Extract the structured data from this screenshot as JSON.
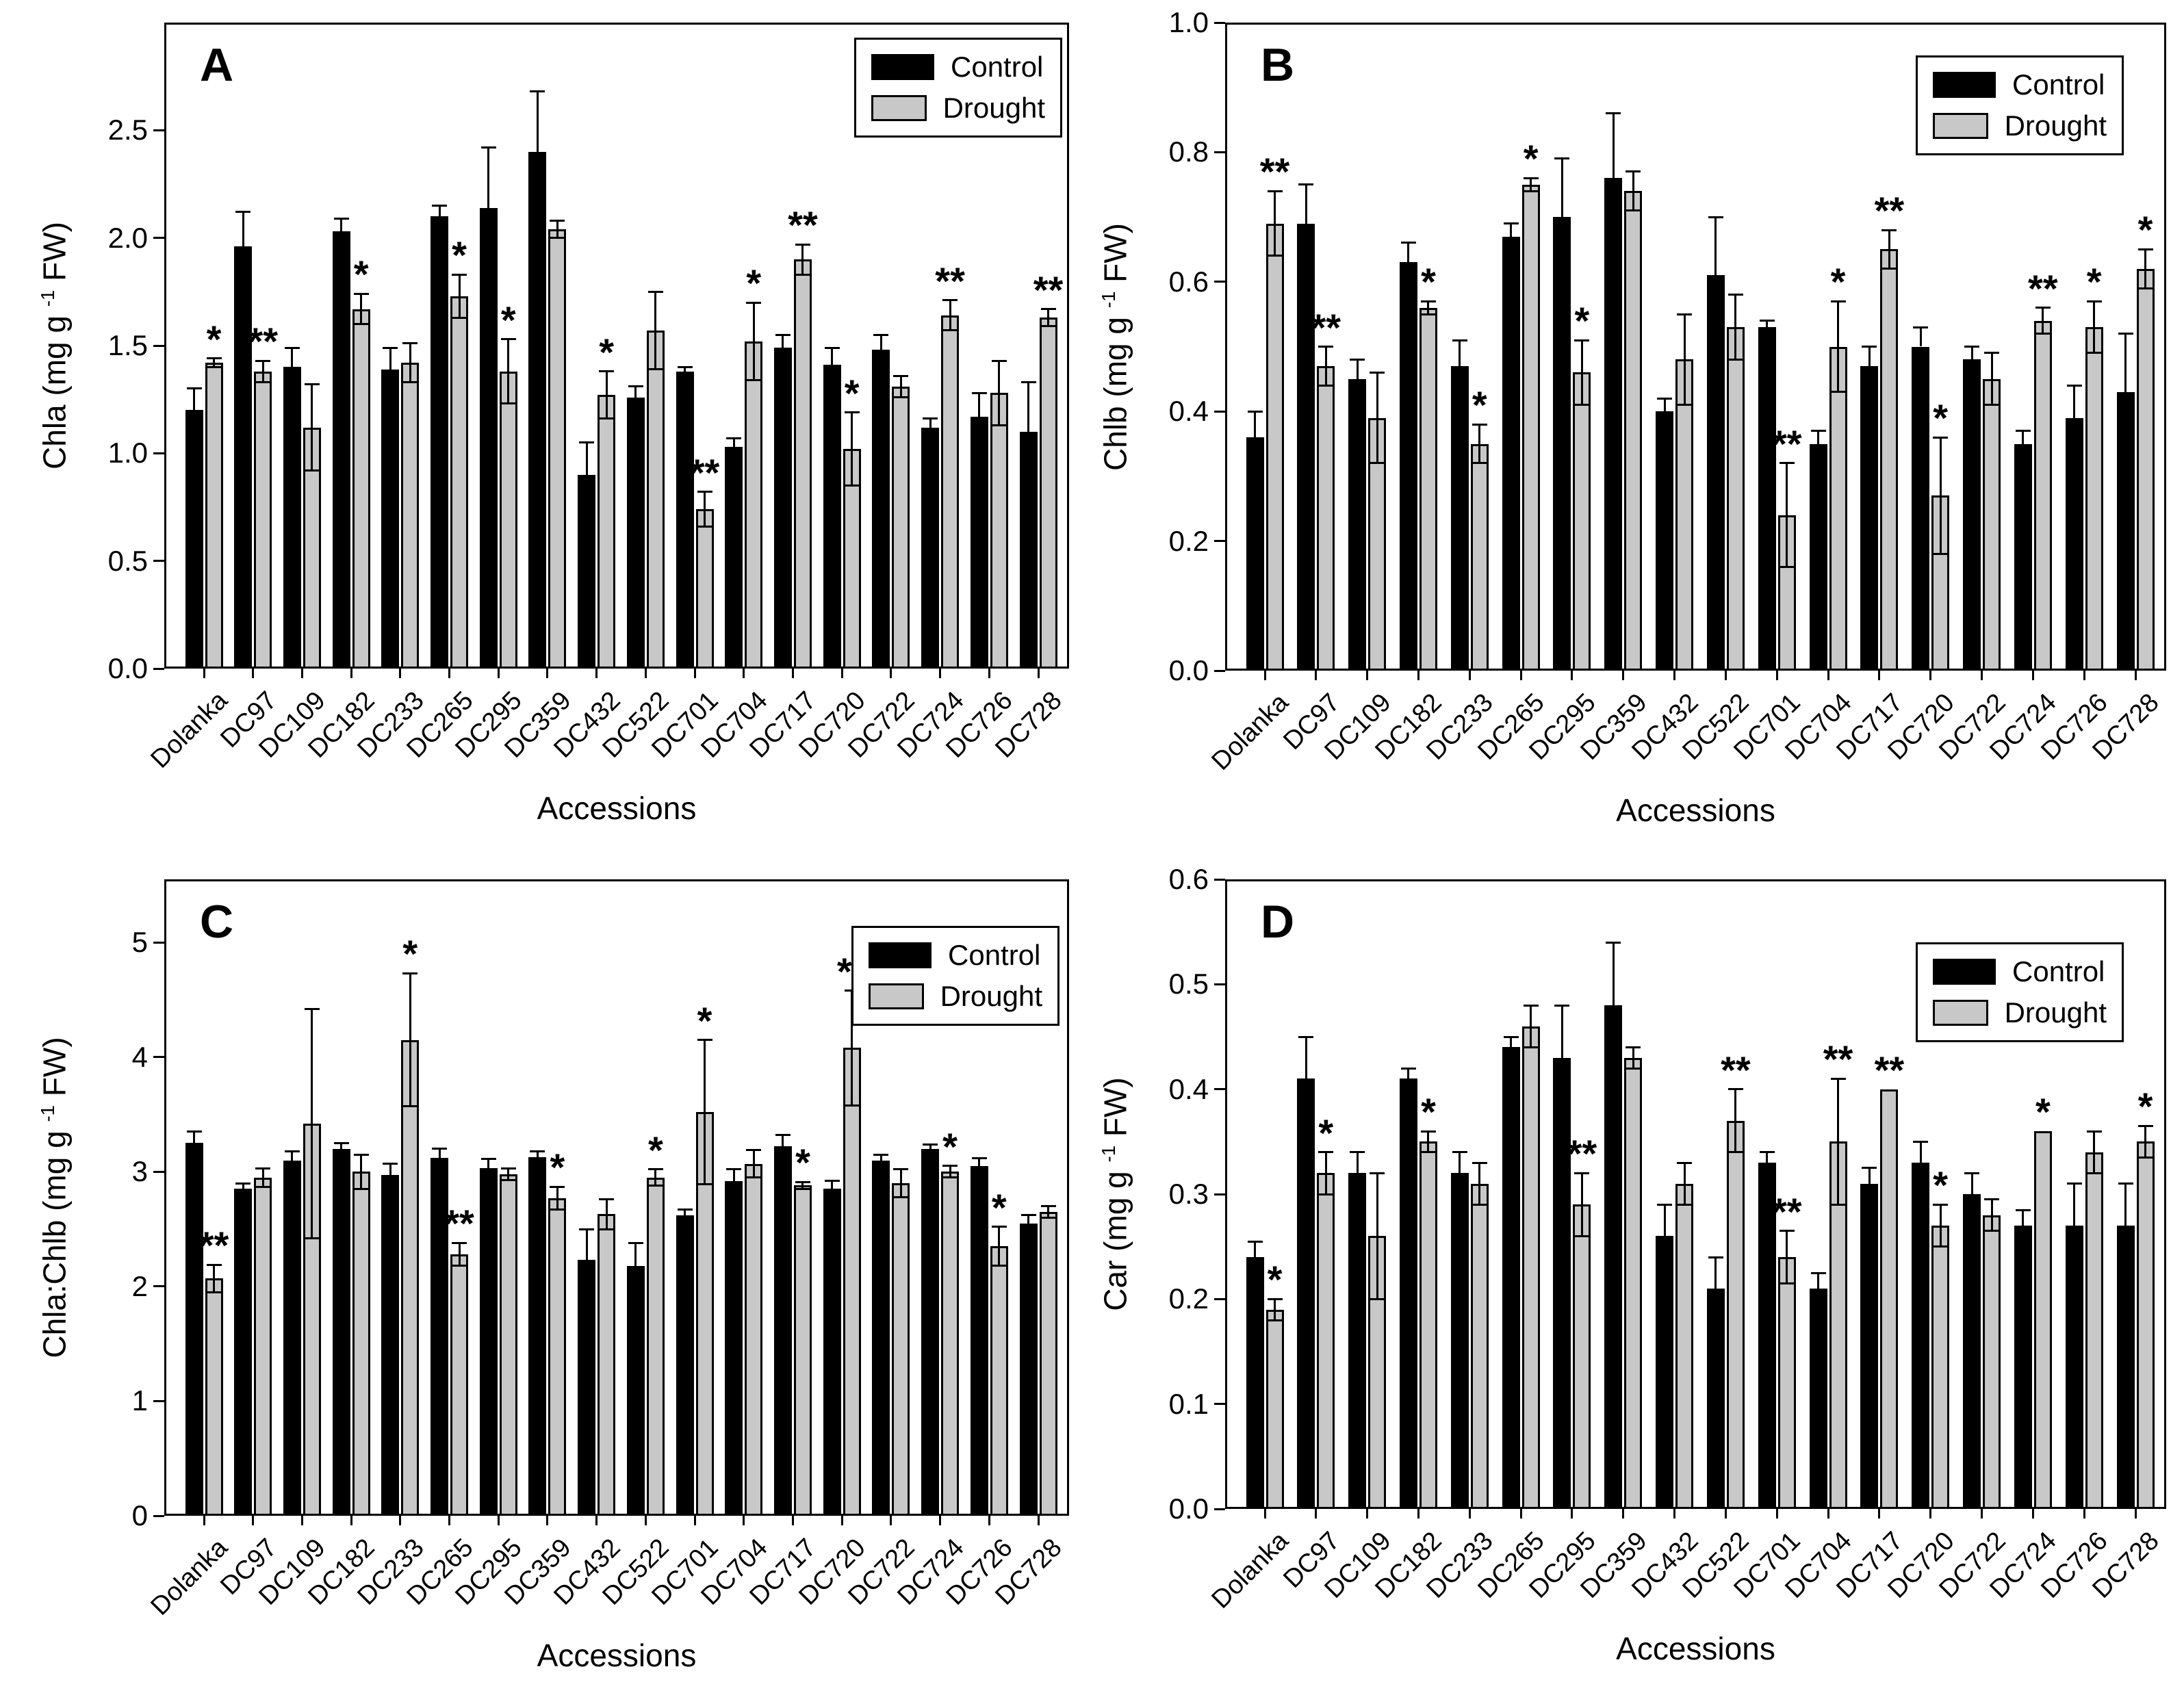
{
  "figure": {
    "description": "Four-panel bar chart of leaf pigment contents under Control and Drought for 18 accessions",
    "panels": [
      "A",
      "B",
      "C",
      "D"
    ],
    "legend": {
      "items": [
        {
          "label": "Control",
          "color": "#000000"
        },
        {
          "label": "Drought",
          "color": "#c8c8c8"
        }
      ],
      "position": "top-right"
    }
  },
  "chart_data": [
    {
      "type": "bar",
      "panel": "A",
      "ylabel_pre": "Chla (mg g ",
      "ylabel_sup": "-1",
      "ylabel_post": " FW)",
      "xlabel": "Accessions",
      "ymax": 3.0,
      "yticks": [
        0.0,
        0.5,
        1.0,
        1.5,
        2.0,
        2.5
      ],
      "ytick_labels": [
        "0.0",
        "0.5",
        "1.0",
        "1.5",
        "2.0",
        "2.5"
      ],
      "grid": false,
      "legend_position": "top-right",
      "categories": [
        "Dolanka",
        "DC97",
        "DC109",
        "DC182",
        "DC233",
        "DC265",
        "DC295",
        "DC359",
        "DC432",
        "DC522",
        "DC701",
        "DC704",
        "DC717",
        "DC720",
        "DC722",
        "DC724",
        "DC726",
        "DC728"
      ],
      "series": [
        {
          "name": "Control",
          "color": "#000000",
          "values": [
            1.2,
            1.96,
            1.4,
            2.03,
            1.39,
            2.1,
            2.14,
            2.4,
            0.9,
            1.26,
            1.38,
            1.03,
            1.49,
            1.41,
            1.48,
            1.12,
            1.17,
            1.1
          ],
          "errors": [
            0.1,
            0.16,
            0.09,
            0.06,
            0.1,
            0.05,
            0.28,
            0.28,
            0.15,
            0.05,
            0.02,
            0.04,
            0.06,
            0.08,
            0.07,
            0.04,
            0.11,
            0.23
          ]
        },
        {
          "name": "Drought",
          "color": "#c8c8c8",
          "values": [
            1.42,
            1.38,
            1.12,
            1.67,
            1.42,
            1.73,
            1.38,
            2.04,
            1.27,
            1.57,
            0.74,
            1.52,
            1.9,
            1.02,
            1.31,
            1.64,
            1.28,
            1.63
          ],
          "errors": [
            0.02,
            0.05,
            0.2,
            0.07,
            0.09,
            0.1,
            0.15,
            0.04,
            0.11,
            0.18,
            0.08,
            0.18,
            0.07,
            0.17,
            0.05,
            0.07,
            0.15,
            0.04
          ]
        }
      ],
      "significance": [
        "*",
        "**",
        "",
        "*",
        "",
        "*",
        "*",
        "",
        "*",
        "",
        "**",
        "*",
        "**",
        "*",
        "",
        "**",
        "",
        "**"
      ]
    },
    {
      "type": "bar",
      "panel": "B",
      "ylabel_pre": "Chlb (mg g ",
      "ylabel_sup": "-1",
      "ylabel_post": " FW)",
      "xlabel": "Accessions",
      "ymax": 1.0,
      "yticks": [
        0.0,
        0.2,
        0.4,
        0.6,
        0.8,
        1.0
      ],
      "ytick_labels": [
        "0.0",
        "0.2",
        "0.4",
        "0.6",
        "0.8",
        "1.0"
      ],
      "grid": false,
      "legend_position": "top-right",
      "categories": [
        "Dolanka",
        "DC97",
        "DC109",
        "DC182",
        "DC233",
        "DC265",
        "DC295",
        "DC359",
        "DC432",
        "DC522",
        "DC701",
        "DC704",
        "DC717",
        "DC720",
        "DC722",
        "DC724",
        "DC726",
        "DC728"
      ],
      "series": [
        {
          "name": "Control",
          "color": "#000000",
          "values": [
            0.36,
            0.69,
            0.45,
            0.63,
            0.47,
            0.67,
            0.7,
            0.76,
            0.4,
            0.61,
            0.53,
            0.35,
            0.47,
            0.5,
            0.48,
            0.35,
            0.39,
            0.43
          ],
          "errors": [
            0.04,
            0.06,
            0.03,
            0.03,
            0.04,
            0.02,
            0.09,
            0.1,
            0.02,
            0.09,
            0.01,
            0.02,
            0.03,
            0.03,
            0.02,
            0.02,
            0.05,
            0.09
          ]
        },
        {
          "name": "Drought",
          "color": "#c8c8c8",
          "values": [
            0.69,
            0.47,
            0.39,
            0.56,
            0.35,
            0.75,
            0.46,
            0.74,
            0.48,
            0.53,
            0.24,
            0.5,
            0.65,
            0.27,
            0.45,
            0.54,
            0.53,
            0.62
          ],
          "errors": [
            0.05,
            0.03,
            0.07,
            0.01,
            0.03,
            0.01,
            0.05,
            0.03,
            0.07,
            0.05,
            0.08,
            0.07,
            0.03,
            0.09,
            0.04,
            0.02,
            0.04,
            0.03
          ]
        }
      ],
      "significance": [
        "**",
        "**",
        "",
        "*",
        "*",
        "*",
        "*",
        "",
        "",
        "",
        "**",
        "*",
        "**",
        "*",
        "",
        "**",
        "*",
        "*"
      ]
    },
    {
      "type": "bar",
      "panel": "C",
      "ylabel_pre": "Chla:Chlb (mg g ",
      "ylabel_sup": "-1",
      "ylabel_post": " FW)",
      "xlabel": "Accessions",
      "ymax": 5.55,
      "yticks": [
        0,
        1,
        2,
        3,
        4,
        5
      ],
      "ytick_labels": [
        "0",
        "1",
        "2",
        "3",
        "4",
        "5"
      ],
      "grid": false,
      "legend_position": "top-right",
      "categories": [
        "Dolanka",
        "DC97",
        "DC109",
        "DC182",
        "DC233",
        "DC265",
        "DC295",
        "DC359",
        "DC432",
        "DC522",
        "DC701",
        "DC704",
        "DC717",
        "DC720",
        "DC722",
        "DC724",
        "DC726",
        "DC728"
      ],
      "series": [
        {
          "name": "Control",
          "color": "#000000",
          "values": [
            3.25,
            2.85,
            3.1,
            3.2,
            2.97,
            3.12,
            3.03,
            3.13,
            2.23,
            2.18,
            2.62,
            2.92,
            3.22,
            2.85,
            3.1,
            3.2,
            3.05,
            2.55
          ],
          "errors": [
            0.1,
            0.05,
            0.08,
            0.05,
            0.1,
            0.08,
            0.08,
            0.05,
            0.27,
            0.2,
            0.05,
            0.1,
            0.1,
            0.07,
            0.05,
            0.04,
            0.07,
            0.07
          ]
        },
        {
          "name": "Drought",
          "color": "#c8c8c8",
          "values": [
            2.07,
            2.95,
            3.42,
            3.0,
            4.15,
            2.28,
            2.98,
            2.77,
            2.63,
            2.95,
            3.52,
            3.07,
            2.88,
            4.08,
            2.9,
            3.0,
            2.35,
            2.65
          ],
          "errors": [
            0.12,
            0.08,
            1.0,
            0.15,
            0.58,
            0.1,
            0.05,
            0.1,
            0.13,
            0.07,
            0.63,
            0.12,
            0.03,
            0.5,
            0.12,
            0.05,
            0.17,
            0.05
          ]
        }
      ],
      "significance": [
        "**",
        "",
        "",
        "",
        "*",
        "**",
        "",
        "*",
        "",
        "*",
        "*",
        "",
        "*",
        "**",
        "",
        "*",
        "*",
        ""
      ]
    },
    {
      "type": "bar",
      "panel": "D",
      "ylabel_pre": "Car (mg g ",
      "ylabel_sup": "-1",
      "ylabel_post": " FW)",
      "xlabel": "Accessions",
      "ymax": 0.6,
      "yticks": [
        0.0,
        0.1,
        0.2,
        0.3,
        0.4,
        0.5,
        0.6
      ],
      "ytick_labels": [
        "0.0",
        "0.1",
        "0.2",
        "0.3",
        "0.4",
        "0.5",
        "0.6"
      ],
      "grid": false,
      "legend_position": "top-right",
      "categories": [
        "Dolanka",
        "DC97",
        "DC109",
        "DC182",
        "DC233",
        "DC265",
        "DC295",
        "DC359",
        "DC432",
        "DC522",
        "DC701",
        "DC704",
        "DC717",
        "DC720",
        "DC722",
        "DC724",
        "DC726",
        "DC728"
      ],
      "series": [
        {
          "name": "Control",
          "color": "#000000",
          "values": [
            0.24,
            0.41,
            0.32,
            0.41,
            0.32,
            0.44,
            0.43,
            0.48,
            0.26,
            0.21,
            0.33,
            0.21,
            0.31,
            0.33,
            0.3,
            0.27,
            0.27,
            0.27
          ],
          "errors": [
            0.015,
            0.04,
            0.02,
            0.01,
            0.02,
            0.01,
            0.05,
            0.06,
            0.03,
            0.03,
            0.01,
            0.015,
            0.015,
            0.02,
            0.02,
            0.015,
            0.04,
            0.04
          ]
        },
        {
          "name": "Drought",
          "color": "#c8c8c8",
          "values": [
            0.19,
            0.32,
            0.26,
            0.35,
            0.31,
            0.46,
            0.29,
            0.43,
            0.31,
            0.37,
            0.24,
            0.35,
            0.4,
            0.27,
            0.28,
            0.36,
            0.34,
            0.35
          ],
          "errors": [
            0.01,
            0.02,
            0.06,
            0.01,
            0.02,
            0.02,
            0.03,
            0.01,
            0.02,
            0.03,
            0.025,
            0.06,
            0,
            0.02,
            0.015,
            0,
            0.02,
            0.015
          ]
        }
      ],
      "significance": [
        "*",
        "*",
        "",
        "*",
        "",
        "",
        "**",
        "",
        "",
        "**",
        "**",
        "**",
        "**",
        "*",
        "",
        "*",
        "",
        "*"
      ]
    }
  ]
}
